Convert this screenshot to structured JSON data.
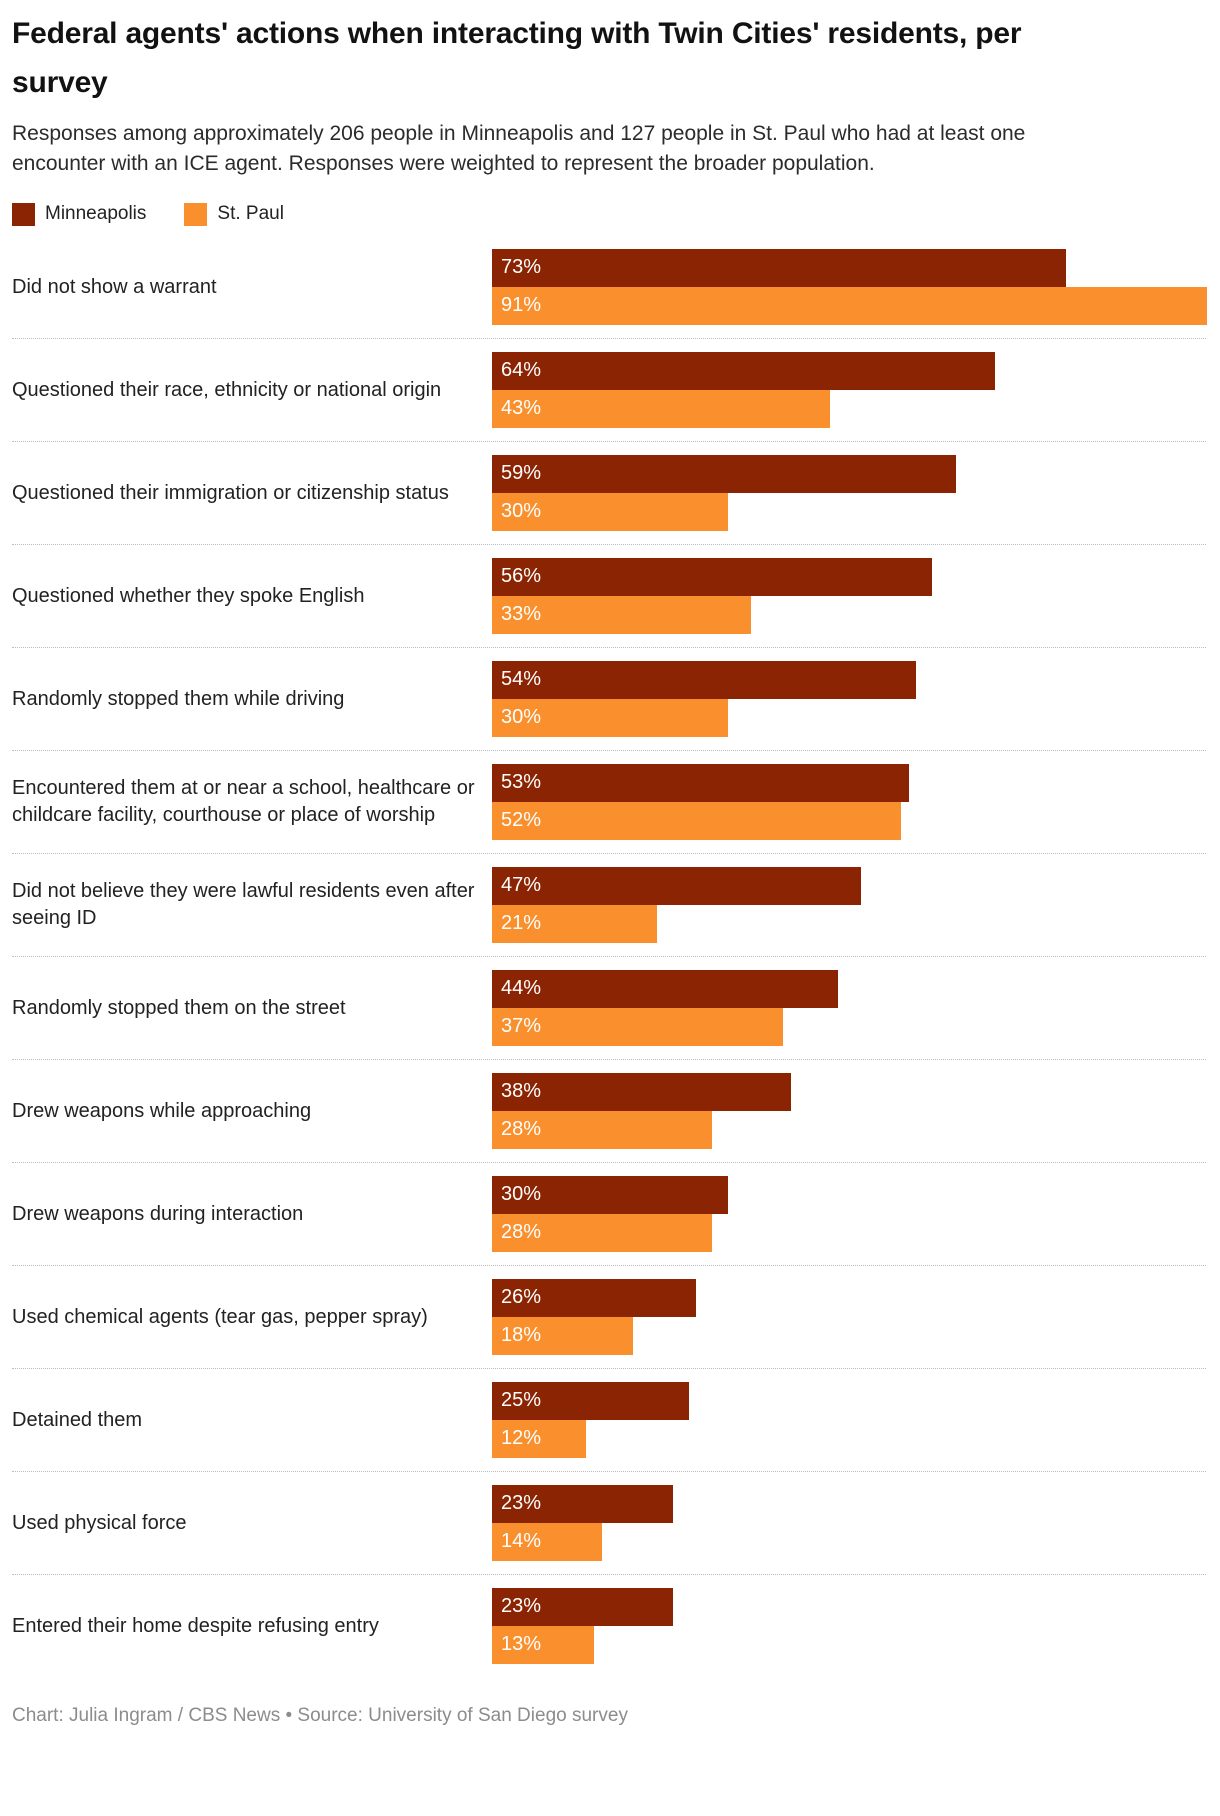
{
  "header": {
    "title": "Federal agents' actions when interacting with Twin Cities' residents, per survey",
    "subtitle": "Responses among approximately 206 people in Minneapolis and 127 people in St. Paul who had at least one encounter with an ICE agent. Responses were weighted to represent the broader population."
  },
  "colors": {
    "minneapolis": "#8B2403",
    "st_paul": "#F9902D",
    "bar_value_text": "#FFFFFF",
    "separator": "#BDBDBD",
    "credit_text": "#8C8C8C"
  },
  "chart_data": {
    "type": "bar",
    "orientation": "horizontal",
    "unit": "%",
    "xlim": [
      0,
      92.7
    ],
    "grid": false,
    "legend_position": "top-left",
    "value_labels": "inside-start",
    "categories": [
      "Did not show a warrant",
      "Questioned their race, ethnicity or national origin",
      "Questioned their immigration or citizenship status",
      "Questioned whether they spoke English",
      "Randomly stopped them while driving",
      "Encountered them at or near a school, healthcare or childcare facility, courthouse or place of worship",
      "Did not believe they were lawful residents even after seeing ID",
      "Randomly stopped them on the street",
      "Drew weapons while approaching",
      "Drew weapons during interaction",
      "Used chemical agents (tear gas, pepper spray)",
      "Detained them",
      "Used physical force",
      "Entered their home despite refusing entry"
    ],
    "series": [
      {
        "name": "Minneapolis",
        "color": "#8B2403",
        "values": [
          73,
          64,
          59,
          56,
          54,
          53,
          47,
          44,
          38,
          30,
          26,
          25,
          23,
          23
        ]
      },
      {
        "name": "St. Paul",
        "color": "#F9902D",
        "values": [
          91,
          43,
          30,
          33,
          30,
          52,
          21,
          37,
          28,
          28,
          18,
          12,
          14,
          13
        ]
      }
    ]
  },
  "footer": {
    "credit": "Chart: Julia Ingram / CBS News • Source: University of San Diego survey"
  }
}
